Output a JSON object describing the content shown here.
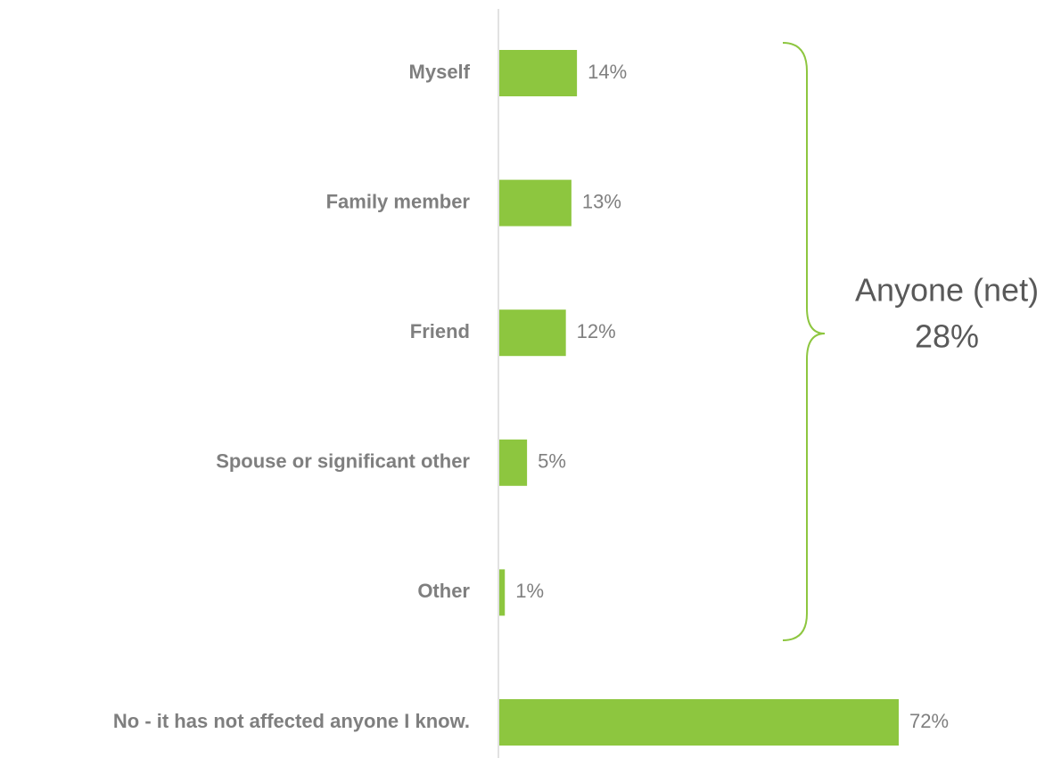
{
  "chart_data": {
    "type": "bar",
    "orientation": "horizontal",
    "categories": [
      "Myself",
      "Family member",
      "Friend",
      "Spouse or significant other",
      "Other",
      "No - it has not affected anyone I know."
    ],
    "values": [
      14,
      13,
      12,
      5,
      1,
      72
    ],
    "value_labels": [
      "14%",
      "13%",
      "12%",
      "5%",
      "1%",
      "72%"
    ],
    "color": "#8dc63f",
    "annotation": {
      "label": "Anyone (net)",
      "value": 28,
      "value_label": "28%"
    }
  }
}
